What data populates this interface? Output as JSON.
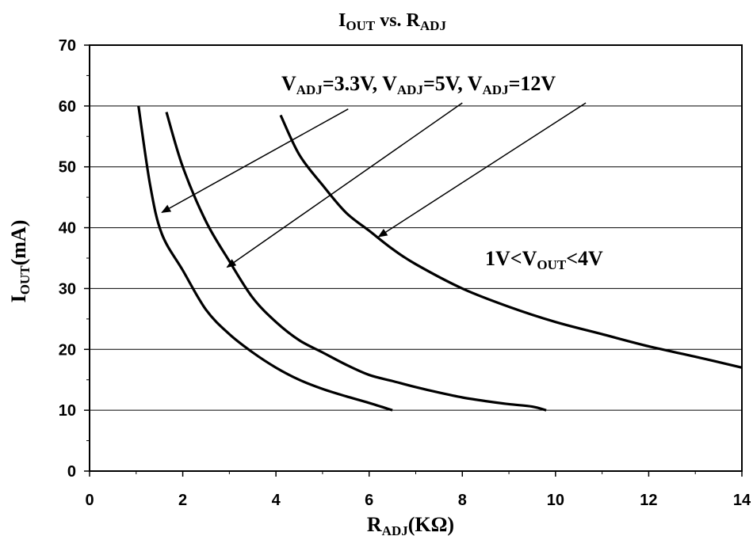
{
  "chart_data": {
    "type": "line",
    "title": {
      "main": "I",
      "sub": "OUT",
      "mid": " vs. R",
      "sub2": "ADJ"
    },
    "xlabel": {
      "main": "R",
      "sub": "ADJ",
      "tail": "(KΩ)"
    },
    "ylabel": {
      "main": "I",
      "sub": "OUT",
      "tail": "(mA)"
    },
    "xlim": [
      0,
      14
    ],
    "ylim": [
      0,
      70
    ],
    "x_ticks": [
      "0",
      "2",
      "4",
      "6",
      "8",
      "10",
      "12",
      "14"
    ],
    "y_ticks": [
      "0",
      "10",
      "20",
      "30",
      "40",
      "50",
      "60",
      "70"
    ],
    "grid": "horizontal major lines at 10 mA steps",
    "annotation_legend": {
      "p1": "V",
      "s1": "ADJ",
      "t1": "=3.3V, ",
      "p2": "V",
      "s2": "ADJ",
      "t2": "=5V, ",
      "p3": "V",
      "s3": "ADJ",
      "t3": "=12V"
    },
    "condition_note": {
      "p1": "1V<V",
      "s1": "OUT",
      "t1": "<4V"
    },
    "series": [
      {
        "name": "V_ADJ=3.3V",
        "points": [
          [
            1.05,
            60
          ],
          [
            1.3,
            47
          ],
          [
            1.55,
            39
          ],
          [
            2.0,
            33
          ],
          [
            2.5,
            26.5
          ],
          [
            3.0,
            22.5
          ],
          [
            3.5,
            19.5
          ],
          [
            4.0,
            17
          ],
          [
            4.5,
            15
          ],
          [
            5.0,
            13.5
          ],
          [
            5.5,
            12.3
          ],
          [
            6.0,
            11.2
          ],
          [
            6.5,
            10
          ]
        ]
      },
      {
        "name": "V_ADJ=5V",
        "points": [
          [
            1.65,
            59
          ],
          [
            2.0,
            50
          ],
          [
            2.5,
            41
          ],
          [
            3.0,
            34.5
          ],
          [
            3.5,
            28.5
          ],
          [
            4.0,
            24.5
          ],
          [
            4.5,
            21.5
          ],
          [
            5.0,
            19.5
          ],
          [
            5.5,
            17.5
          ],
          [
            6.0,
            15.8
          ],
          [
            6.5,
            14.8
          ],
          [
            7.0,
            13.8
          ],
          [
            7.5,
            12.9
          ],
          [
            8.0,
            12.1
          ],
          [
            8.5,
            11.5
          ],
          [
            9.0,
            11
          ],
          [
            9.5,
            10.6
          ],
          [
            9.8,
            10
          ]
        ]
      },
      {
        "name": "V_ADJ=12V",
        "points": [
          [
            4.1,
            58.5
          ],
          [
            4.5,
            52
          ],
          [
            5.0,
            47
          ],
          [
            5.5,
            42.5
          ],
          [
            6.0,
            39.5
          ],
          [
            6.5,
            36.5
          ],
          [
            7.0,
            34
          ],
          [
            8.0,
            30
          ],
          [
            9.0,
            27
          ],
          [
            10.0,
            24.5
          ],
          [
            11.0,
            22.5
          ],
          [
            12.0,
            20.5
          ],
          [
            13.0,
            18.8
          ],
          [
            14.0,
            17
          ]
        ]
      }
    ],
    "arrows": [
      {
        "from": [
          5.55,
          59.5
        ],
        "to": [
          1.55,
          42.5
        ]
      },
      {
        "from": [
          8.0,
          60.5
        ],
        "to": [
          2.95,
          33.5
        ]
      },
      {
        "from": [
          10.65,
          60.5
        ],
        "to": [
          6.2,
          38.5
        ]
      }
    ]
  }
}
